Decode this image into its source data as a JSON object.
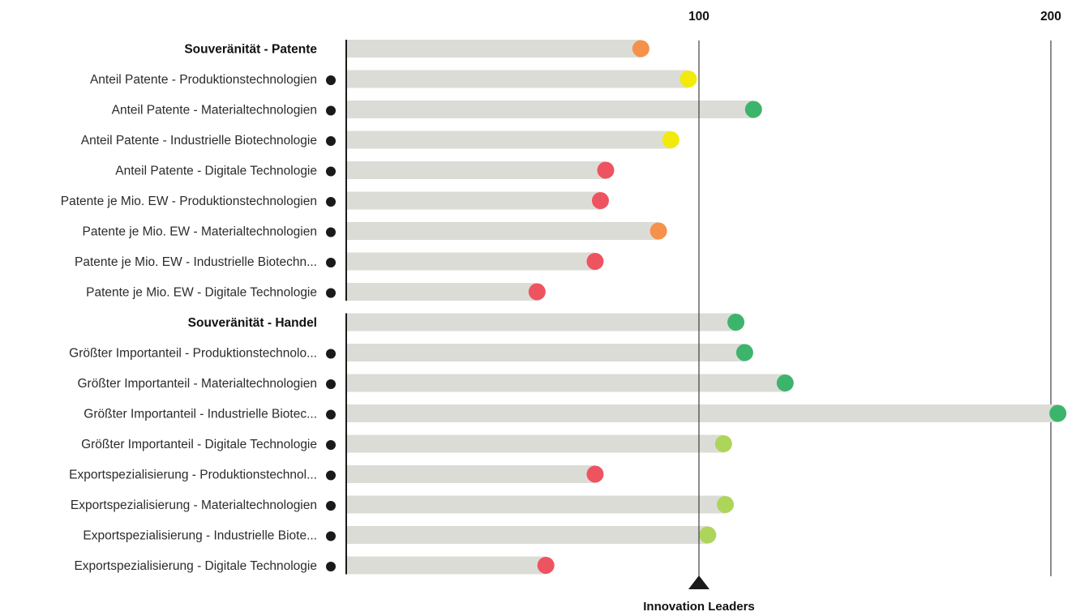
{
  "chart_data": {
    "type": "lollipop-bar",
    "axis": {
      "xlim": [
        0,
        200
      ],
      "ticks": [
        {
          "value": 100,
          "label": "100"
        },
        {
          "value": 200,
          "label": "200"
        }
      ],
      "reference": {
        "value": 100,
        "label": "Innovation Leaders"
      }
    },
    "colors": {
      "track": "#dcdcd7",
      "axis": "#1a1a1a",
      "bullet": "#1a1a1a",
      "red": "#ee5460",
      "orange": "#f5914a",
      "yellow": "#f2ea0a",
      "lightgreen": "#add55a",
      "green": "#3db46c"
    },
    "groups": [
      {
        "name": "Souveränität - Patente",
        "header_value": 83.5,
        "header_status": "orange",
        "items": [
          {
            "label": "Anteil Patente - Produktionstechnologien",
            "value": 97,
            "status": "yellow"
          },
          {
            "label": "Anteil Patente - Materialtechnologien",
            "value": 115.5,
            "status": "green"
          },
          {
            "label": "Anteil Patente - Industrielle Biotechnologie",
            "value": 92,
            "status": "yellow"
          },
          {
            "label": "Anteil Patente - Digitale Technologie",
            "value": 73.5,
            "status": "red"
          },
          {
            "label": "Patente je Mio. EW - Produktionstechnologien",
            "value": 72,
            "status": "red"
          },
          {
            "label": "Patente je Mio. EW - Materialtechnologien",
            "value": 88.5,
            "status": "orange"
          },
          {
            "label": "Patente je Mio. EW - Industrielle Biotechn...",
            "value": 70.5,
            "status": "red"
          },
          {
            "label": "Patente je Mio. EW - Digitale Technologie",
            "value": 54,
            "status": "red"
          }
        ]
      },
      {
        "name": "Souveränität - Handel",
        "header_value": 110.5,
        "header_status": "green",
        "items": [
          {
            "label": "Größter Importanteil - Produktionstechnolo...",
            "value": 113,
            "status": "green"
          },
          {
            "label": "Größter Importanteil - Materialtechnologien",
            "value": 124.5,
            "status": "green"
          },
          {
            "label": "Größter Importanteil - Industrielle Biotec...",
            "value": 202,
            "status": "green"
          },
          {
            "label": "Größter Importanteil - Digitale Technologie",
            "value": 107,
            "status": "lightgreen"
          },
          {
            "label": "Exportspezialisierung - Produktionstechnol...",
            "value": 70.5,
            "status": "red"
          },
          {
            "label": "Exportspezialisierung - Materialtechnologien",
            "value": 107.5,
            "status": "lightgreen"
          },
          {
            "label": "Exportspezialisierung - Industrielle Biote...",
            "value": 102.5,
            "status": "lightgreen"
          },
          {
            "label": "Exportspezialisierung - Digitale Technologie",
            "value": 56.5,
            "status": "red"
          }
        ]
      }
    ]
  }
}
